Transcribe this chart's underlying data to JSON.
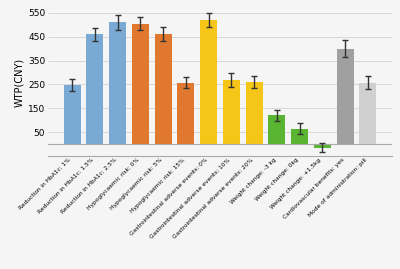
{
  "categories": [
    "Reduction in HbA1c: 1%",
    "Reduction in HbA1c: 1.5%",
    "Reduction in HbA1c: 2.5%",
    "Hypoglycaemic risk: 0%",
    "Hypoglycaemic risk: 5%",
    "Hypoglycaemic risk: 15%",
    "Gastrointestinal adverse events: 0%",
    "Gastrointestinal adverse events: 10%",
    "Gastrointestinal adverse events: 20%",
    "Weight change: -3 kg",
    "Weight change: 0kg",
    "Weight change: +1.5kg",
    "Cardiovascular benefits: yes",
    "Mode of administration: pill"
  ],
  "values": [
    248,
    460,
    510,
    505,
    462,
    258,
    520,
    268,
    260,
    120,
    65,
    -15,
    400,
    258
  ],
  "errors": [
    25,
    28,
    30,
    28,
    28,
    25,
    30,
    28,
    25,
    22,
    22,
    18,
    35,
    28
  ],
  "colors": [
    "#7aaad4",
    "#7aaad4",
    "#7aaad4",
    "#e07830",
    "#e07830",
    "#e07830",
    "#f5c518",
    "#f5c518",
    "#f5c518",
    "#5ab532",
    "#5ab532",
    "#5ab532",
    "#a0a0a0",
    "#d0d0d0"
  ],
  "ylabel": "WTP(CNY)",
  "ylim": [
    -50,
    570
  ],
  "yticks": [
    50,
    150,
    250,
    350,
    450,
    550
  ],
  "background_color": "#f5f5f5",
  "bar_width": 0.75
}
